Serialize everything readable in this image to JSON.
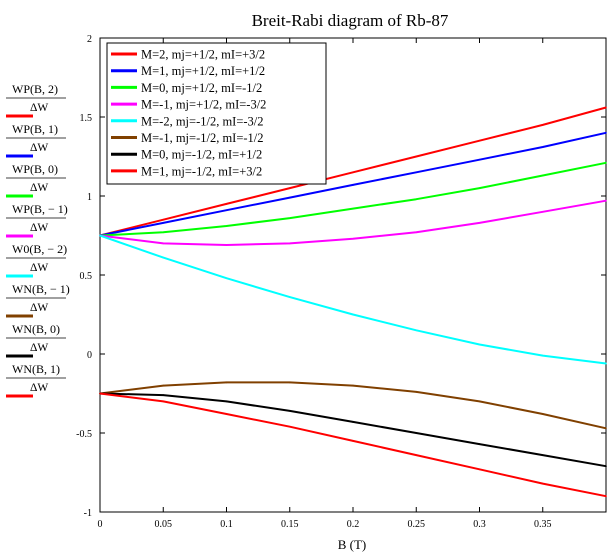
{
  "chart_data": {
    "type": "line",
    "title": "Breit-Rabi diagram of Rb-87",
    "xlabel": "B (T)",
    "ylabel": "",
    "xlim": [
      0,
      0.4
    ],
    "ylim": [
      -1,
      2
    ],
    "x_ticks": [
      "0",
      "0.05",
      "0.1",
      "0.15",
      "0.2",
      "0.25",
      "0.3",
      "0.35"
    ],
    "y_ticks": [
      "2",
      "1.5",
      "1",
      "0.5",
      "0",
      "-0.5",
      "-1"
    ],
    "grid": false,
    "legend_position": "top-left",
    "legend": [
      {
        "label": "M=2, mj=+1/2, mI=+3/2",
        "color": "#ff0000"
      },
      {
        "label": "M=1, mj=+1/2, mI=+1/2",
        "color": "#0000ff"
      },
      {
        "label": "M=0, mj=+1/2, mI=-1/2",
        "color": "#00ff00"
      },
      {
        "label": "M=-1, mj=+1/2, mI=-3/2",
        "color": "#ff00ff"
      },
      {
        "label": "M=-2, mj=-1/2, mI=-3/2",
        "color": "#00ffff"
      },
      {
        "label": "M=-1, mj=-1/2, mI=-1/2",
        "color": "#804000"
      },
      {
        "label": "M=0, mj=-1/2, mI=+1/2",
        "color": "#000000"
      },
      {
        "label": "M=1, mj=-1/2, mI=+3/2",
        "color": "#ff0000"
      }
    ],
    "side_labels": [
      {
        "numerator": "WP(B, 2)",
        "denominator": "ΔW",
        "color": "#ff0000"
      },
      {
        "numerator": "WP(B, 1)",
        "denominator": "ΔW",
        "color": "#0000ff"
      },
      {
        "numerator": "WP(B, 0)",
        "denominator": "ΔW",
        "color": "#00ff00"
      },
      {
        "numerator": "WP(B, − 1)",
        "denominator": "ΔW",
        "color": "#ff00ff"
      },
      {
        "numerator": "W0(B, − 2)",
        "denominator": "ΔW",
        "color": "#00ffff"
      },
      {
        "numerator": "WN(B, − 1)",
        "denominator": "ΔW",
        "color": "#804000"
      },
      {
        "numerator": "WN(B, 0)",
        "denominator": "ΔW",
        "color": "#000000"
      },
      {
        "numerator": "WN(B, 1)",
        "denominator": "ΔW",
        "color": "#ff0000"
      }
    ],
    "x": [
      0,
      0.05,
      0.1,
      0.15,
      0.2,
      0.25,
      0.3,
      0.35,
      0.4
    ],
    "series": [
      {
        "color": "#ff0000",
        "values": [
          0.75,
          0.85,
          0.95,
          1.05,
          1.15,
          1.25,
          1.35,
          1.45,
          1.56
        ]
      },
      {
        "color": "#0000ff",
        "values": [
          0.75,
          0.83,
          0.91,
          0.99,
          1.07,
          1.15,
          1.23,
          1.31,
          1.4
        ]
      },
      {
        "color": "#00ff00",
        "values": [
          0.75,
          0.77,
          0.81,
          0.86,
          0.92,
          0.98,
          1.05,
          1.13,
          1.21
        ]
      },
      {
        "color": "#ff00ff",
        "values": [
          0.75,
          0.7,
          0.69,
          0.7,
          0.73,
          0.77,
          0.83,
          0.9,
          0.97
        ]
      },
      {
        "color": "#00ffff",
        "values": [
          0.75,
          0.61,
          0.48,
          0.36,
          0.25,
          0.15,
          0.06,
          -0.01,
          -0.06
        ]
      },
      {
        "color": "#804000",
        "values": [
          -0.25,
          -0.2,
          -0.18,
          -0.18,
          -0.2,
          -0.24,
          -0.3,
          -0.38,
          -0.47
        ]
      },
      {
        "color": "#000000",
        "values": [
          -0.25,
          -0.26,
          -0.3,
          -0.36,
          -0.43,
          -0.5,
          -0.57,
          -0.64,
          -0.71
        ]
      },
      {
        "color": "#ff0000",
        "values": [
          -0.25,
          -0.3,
          -0.38,
          -0.46,
          -0.55,
          -0.64,
          -0.73,
          -0.82,
          -0.9
        ]
      }
    ]
  }
}
